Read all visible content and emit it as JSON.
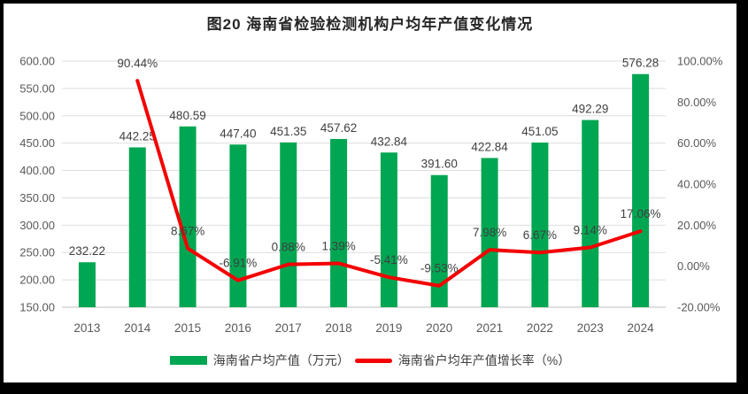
{
  "chart": {
    "title": "图20  海南省检验检测机构户均年产值变化情况"
  },
  "chart_data": {
    "type": "bar",
    "combo": "bar+line",
    "title": "图20  海南省检验检测机构户均年产值变化情况",
    "categories": [
      "2013",
      "2014",
      "2015",
      "2016",
      "2017",
      "2018",
      "2019",
      "2020",
      "2021",
      "2022",
      "2023",
      "2024"
    ],
    "series": [
      {
        "name": "海南省户均产值（万元）",
        "type": "bar",
        "axis": "left",
        "color": "#00A651",
        "values": [
          232.22,
          442.25,
          480.59,
          447.4,
          451.35,
          457.62,
          432.84,
          391.6,
          422.84,
          451.05,
          492.29,
          576.28
        ],
        "labels": [
          "232.22",
          "442.25",
          "480.59",
          "447.40",
          "451.35",
          "457.62",
          "432.84",
          "391.60",
          "422.84",
          "451.05",
          "492.29",
          "576.28"
        ]
      },
      {
        "name": "海南省户均年产值增长率（%）",
        "type": "line",
        "axis": "right",
        "color": "#F40000",
        "values": [
          null,
          90.44,
          8.67,
          -6.91,
          0.88,
          1.39,
          -5.41,
          -9.53,
          7.98,
          6.67,
          9.14,
          17.06
        ],
        "labels": [
          "",
          "90.44%",
          "8.67%",
          "-6.91%",
          "0.88%",
          "1.39%",
          "-5.41%",
          "-9.53%",
          "7.98%",
          "6.67%",
          "9.14%",
          "17.06%"
        ]
      }
    ],
    "left_axis": {
      "min": 150,
      "max": 600,
      "step": 50,
      "tick_labels": [
        "150.00",
        "200.00",
        "250.00",
        "300.00",
        "350.00",
        "400.00",
        "450.00",
        "500.00",
        "550.00",
        "600.00"
      ]
    },
    "right_axis": {
      "min": -20,
      "max": 100,
      "step": 20,
      "tick_labels": [
        "-20.00%",
        "0.00%",
        "20.00%",
        "40.00%",
        "60.00%",
        "80.00%",
        "100.00%"
      ]
    },
    "grid": true,
    "legend_position": "bottom",
    "colors": {
      "grid_line": "#DEDEDE",
      "axis_line": "#BFBFBF",
      "tick_text": "#595959",
      "label_text": "#404040",
      "frame_border": "#000000"
    }
  }
}
